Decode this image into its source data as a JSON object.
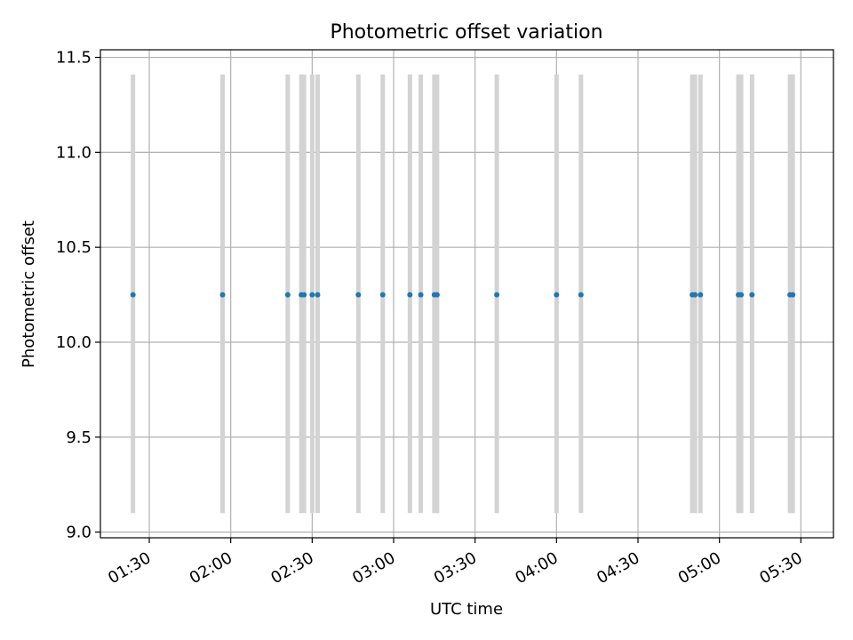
{
  "chart_data": {
    "type": "scatter",
    "title": "Photometric offset variation",
    "xlabel": "UTC time",
    "ylabel": "Photometric offset",
    "xlim": [
      "01:12",
      "05:42"
    ],
    "ylim": [
      8.97,
      11.54
    ],
    "xticks": [
      "01:30",
      "02:00",
      "02:30",
      "03:00",
      "03:30",
      "04:00",
      "04:30",
      "05:00",
      "05:30"
    ],
    "yticks": [
      "9.0",
      "9.5",
      "10.0",
      "10.5",
      "11.0",
      "11.5"
    ],
    "grid": true,
    "span_range": [
      9.1,
      11.41
    ],
    "series": [
      {
        "color": "#1f77b4",
        "points": [
          {
            "x": "01:24",
            "y": 10.25
          },
          {
            "x": "01:57",
            "y": 10.25
          },
          {
            "x": "02:21",
            "y": 10.25
          },
          {
            "x": "02:26",
            "y": 10.25
          },
          {
            "x": "02:27",
            "y": 10.25
          },
          {
            "x": "02:30",
            "y": 10.25
          },
          {
            "x": "02:32",
            "y": 10.25
          },
          {
            "x": "02:47",
            "y": 10.25
          },
          {
            "x": "02:56",
            "y": 10.25
          },
          {
            "x": "03:06",
            "y": 10.25
          },
          {
            "x": "03:10",
            "y": 10.25
          },
          {
            "x": "03:15",
            "y": 10.25
          },
          {
            "x": "03:16",
            "y": 10.25
          },
          {
            "x": "03:38",
            "y": 10.25
          },
          {
            "x": "04:00",
            "y": 10.25
          },
          {
            "x": "04:09",
            "y": 10.25
          },
          {
            "x": "04:50",
            "y": 10.25
          },
          {
            "x": "04:51",
            "y": 10.25
          },
          {
            "x": "04:53",
            "y": 10.25
          },
          {
            "x": "05:07",
            "y": 10.25
          },
          {
            "x": "05:08",
            "y": 10.25
          },
          {
            "x": "05:12",
            "y": 10.25
          },
          {
            "x": "05:26",
            "y": 10.25
          },
          {
            "x": "05:27",
            "y": 10.25
          }
        ]
      }
    ],
    "colors": {
      "marker": "#1f77b4",
      "span": "#d3d3d3",
      "grid": "#b0b0b0",
      "axis": "#000000"
    }
  }
}
